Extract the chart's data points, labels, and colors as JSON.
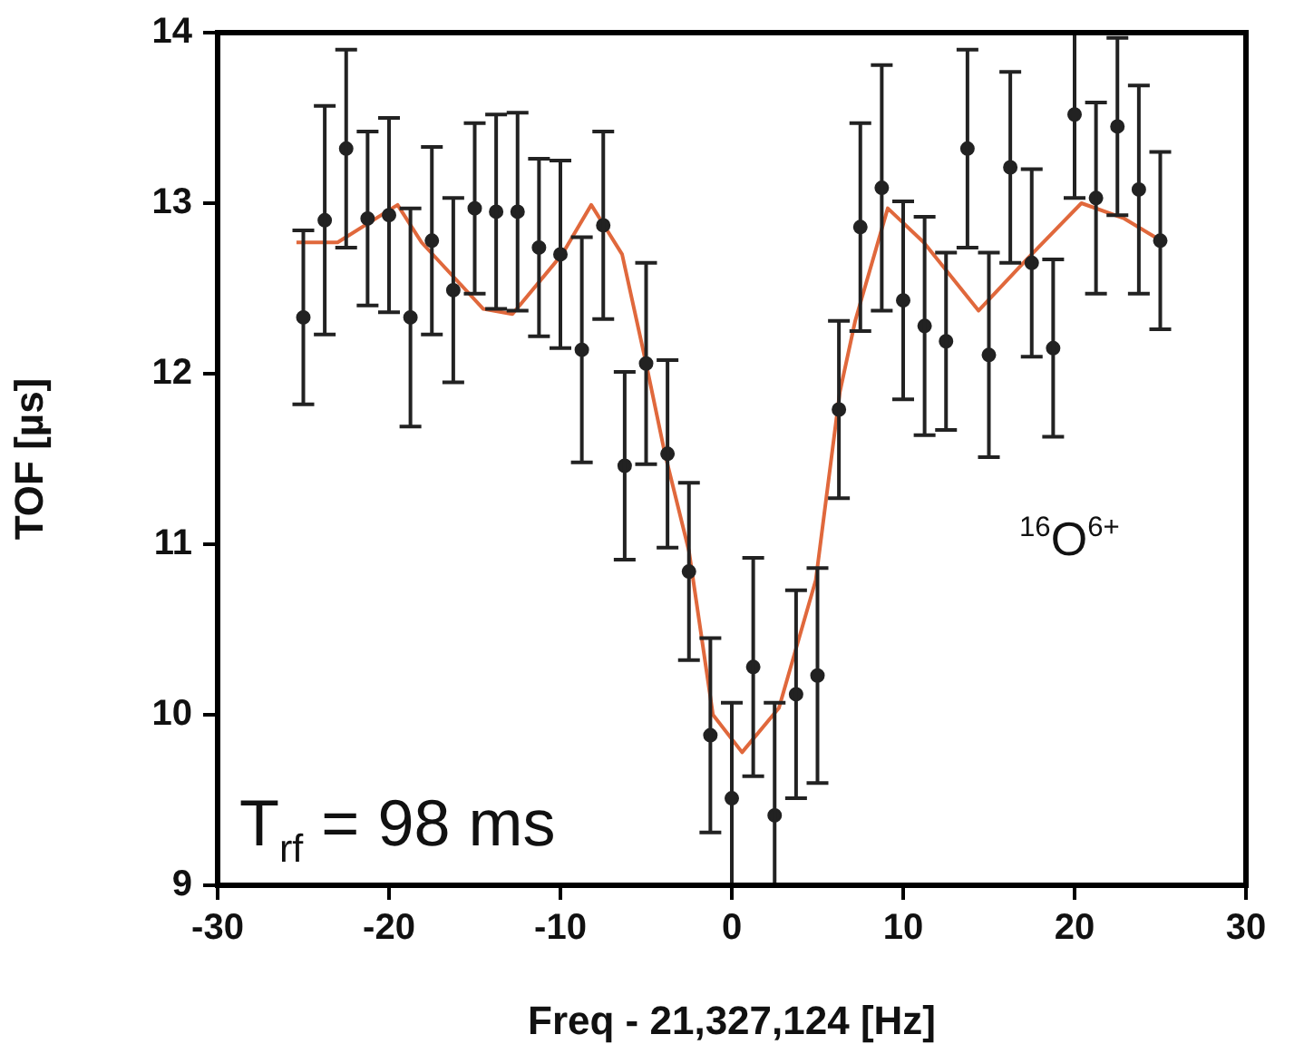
{
  "chart_data": {
    "type": "scatter",
    "xlabel": "Freq - 21,327,124 [Hz]",
    "ylabel": "TOF [µs]",
    "annotations": [
      "T$_{rf}$ = 98 ms",
      "$^{16}$O$^{6+}$"
    ],
    "xlim": [
      -30,
      30
    ],
    "xticks": [
      -30,
      -20,
      -10,
      0,
      10,
      20,
      30
    ],
    "ylim": [
      9,
      14
    ],
    "yticks": [
      9,
      10,
      11,
      12,
      13,
      14
    ],
    "grid": false,
    "legend": false,
    "marker": "circle",
    "series": [
      {
        "color": "#222222",
        "x": [
          -25,
          -23.75,
          -22.5,
          -21.25,
          -20,
          -18.75,
          -17.5,
          -16.25,
          -15,
          -13.75,
          -12.5,
          -11.25,
          -10,
          -8.75,
          -7.5,
          -6.25,
          -5,
          -3.75,
          -2.5,
          -1.25,
          0,
          1.25,
          2.5,
          3.75,
          5,
          6.25,
          7.5,
          8.75,
          10,
          11.25,
          12.5,
          13.75,
          15,
          16.25,
          17.5,
          18.75,
          20,
          21.25,
          22.5,
          23.75,
          25
        ],
        "values": [
          12.33,
          12.9,
          13.32,
          12.91,
          12.93,
          12.33,
          12.78,
          12.49,
          12.97,
          12.95,
          12.95,
          12.74,
          12.7,
          12.14,
          12.87,
          11.46,
          12.06,
          11.53,
          10.84,
          9.88,
          9.51,
          10.28,
          9.41,
          10.12,
          10.23,
          11.79,
          12.86,
          13.09,
          12.43,
          12.28,
          12.19,
          13.32,
          12.11,
          13.21,
          12.65,
          12.15,
          13.52,
          13.03,
          13.45,
          13.08,
          12.78
        ],
        "errors": [
          0.51,
          0.67,
          0.58,
          0.51,
          0.57,
          0.64,
          0.55,
          0.54,
          0.5,
          0.57,
          0.58,
          0.52,
          0.55,
          0.66,
          0.55,
          0.55,
          0.59,
          0.55,
          0.52,
          0.57,
          [
            9,
            10.07
          ],
          0.64,
          [
            9,
            10.07
          ],
          0.61,
          0.63,
          0.52,
          0.61,
          0.72,
          0.58,
          0.64,
          0.52,
          0.58,
          0.6,
          0.56,
          0.55,
          0.52,
          [
            13.03,
            14
          ],
          0.56,
          0.52,
          0.61,
          0.52
        ]
      },
      {
        "type": "line",
        "marker": "none",
        "color": "#e0683c",
        "x": [
          -25.4,
          -23,
          -19.5,
          -18.1,
          -14.5,
          -12.8,
          -9.9,
          -8.2,
          -6.4,
          -5,
          -3.9,
          -2.5,
          -1.1,
          0.6,
          2.75,
          4.9,
          6.3,
          7.2,
          9.1,
          11.2,
          14.4,
          17.2,
          20.4,
          22.9,
          25.2
        ],
        "values": [
          12.77,
          12.77,
          12.99,
          12.77,
          12.38,
          12.35,
          12.7,
          12.99,
          12.7,
          12.06,
          11.53,
          10.96,
          10,
          9.78,
          10.04,
          10.79,
          11.89,
          12.31,
          12.97,
          12.77,
          12.37,
          12.67,
          13,
          12.91,
          12.77
        ]
      }
    ]
  }
}
